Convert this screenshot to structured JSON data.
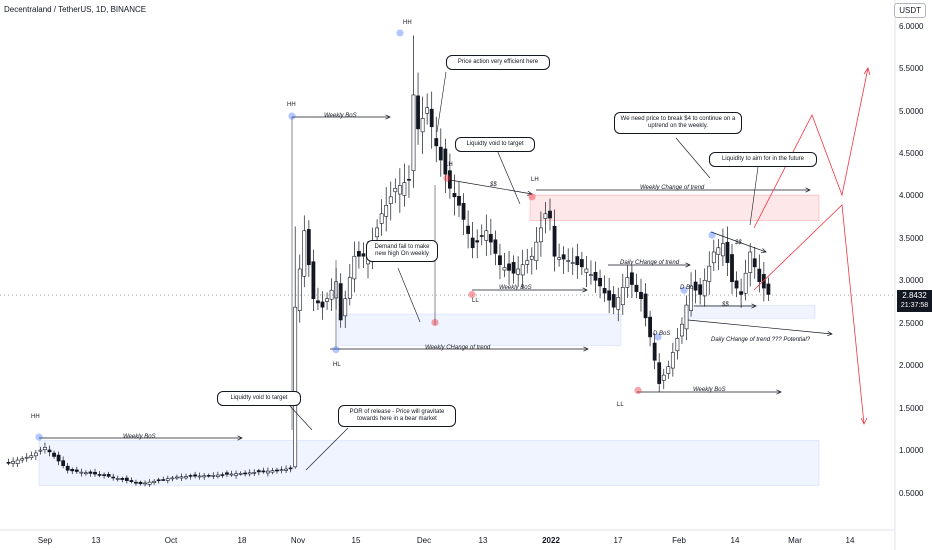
{
  "header": {
    "title": "Decentraland / TetherUS, 1D, BINANCE",
    "currency": "USDT"
  },
  "current_price": {
    "value": "2.8432",
    "countdown": "21:37:58"
  },
  "chart_data": {
    "type": "candlestick",
    "symbol": "Decentraland / TetherUS",
    "timeframe": "1D",
    "exchange": "BINANCE",
    "y_ticks": [
      "6.0000",
      "5.5000",
      "5.0000",
      "4.5000",
      "4.0000",
      "3.5000",
      "3.0000",
      "2.5000",
      "2.0000",
      "1.5000",
      "1.0000",
      "0.5000"
    ],
    "ylim": [
      0.1,
      6.25
    ],
    "x_ticks": [
      {
        "label": "Sep",
        "bold": false
      },
      {
        "label": "13",
        "bold": false
      },
      {
        "label": "Oct",
        "bold": false
      },
      {
        "label": "18",
        "bold": false
      },
      {
        "label": "Nov",
        "bold": false
      },
      {
        "label": "15",
        "bold": false
      },
      {
        "label": "Dec",
        "bold": false
      },
      {
        "label": "13",
        "bold": false
      },
      {
        "label": "2022",
        "bold": true
      },
      {
        "label": "17",
        "bold": false
      },
      {
        "label": "Feb",
        "bold": false
      },
      {
        "label": "14",
        "bold": false
      },
      {
        "label": "Mar",
        "bold": false
      },
      {
        "label": "14",
        "bold": false
      }
    ],
    "close_anchors": [
      [
        0,
        0.85
      ],
      [
        6,
        0.95
      ],
      [
        9,
        1.05
      ],
      [
        14,
        0.78
      ],
      [
        22,
        0.72
      ],
      [
        30,
        0.62
      ],
      [
        38,
        0.7
      ],
      [
        46,
        0.72
      ],
      [
        54,
        0.75
      ],
      [
        60,
        0.78
      ],
      [
        63,
        0.8
      ],
      [
        64,
        2.7
      ],
      [
        66,
        3.6
      ],
      [
        68,
        2.8
      ],
      [
        70,
        2.7
      ],
      [
        73,
        3.0
      ],
      [
        74,
        2.55
      ],
      [
        77,
        3.3
      ],
      [
        80,
        3.3
      ],
      [
        83,
        3.8
      ],
      [
        86,
        4.1
      ],
      [
        89,
        4.2
      ],
      [
        90,
        5.2
      ],
      [
        91,
        4.8
      ],
      [
        93,
        5.05
      ],
      [
        95,
        4.6
      ],
      [
        98,
        4.1
      ],
      [
        100,
        3.9
      ],
      [
        103,
        3.4
      ],
      [
        106,
        3.6
      ],
      [
        109,
        3.2
      ],
      [
        112,
        3.1
      ],
      [
        116,
        3.3
      ],
      [
        119,
        3.8
      ],
      [
        120,
        3.75
      ],
      [
        121,
        3.3
      ],
      [
        124,
        3.25
      ],
      [
        128,
        3.15
      ],
      [
        131,
        2.95
      ],
      [
        134,
        2.7
      ],
      [
        137,
        3.05
      ],
      [
        140,
        2.8
      ],
      [
        142,
        2.35
      ],
      [
        144,
        1.8
      ],
      [
        146,
        2.0
      ],
      [
        149,
        2.5
      ],
      [
        151,
        2.95
      ],
      [
        153,
        2.85
      ],
      [
        156,
        3.35
      ],
      [
        158,
        3.45
      ],
      [
        160,
        3.0
      ],
      [
        162,
        2.85
      ],
      [
        164,
        3.35
      ],
      [
        166,
        3.0
      ],
      [
        168,
        2.85
      ]
    ],
    "hl_anchors": [
      [
        64,
        3.65
      ],
      [
        90,
        5.9
      ],
      [
        144,
        1.7
      ]
    ],
    "zones": [
      {
        "from": 2.25,
        "to": 2.62,
        "color": "blue"
      },
      {
        "from": 3.72,
        "to": 4.02,
        "color": "red"
      },
      {
        "from": 2.57,
        "to": 2.72,
        "color": "blue"
      },
      {
        "from": 0.6,
        "to": 1.13,
        "color": "blue"
      }
    ],
    "pivots": [
      {
        "label": "HH",
        "price": 5.93,
        "color": "blue"
      },
      {
        "label": "HH",
        "price": 4.95,
        "color": "blue"
      },
      {
        "label": "HH",
        "price": 1.17,
        "color": "blue"
      },
      {
        "label": "LH",
        "price": 4.22,
        "color": "red"
      },
      {
        "label": "LH",
        "price": 4.0,
        "color": "red"
      },
      {
        "label": "LL",
        "price": 2.85,
        "color": "red"
      },
      {
        "label": "LL",
        "price": 1.72,
        "color": "red"
      },
      {
        "label": "HL",
        "price": 2.2,
        "color": "blue"
      },
      {
        "label": "",
        "price": 2.52,
        "color": "red"
      },
      {
        "label": "",
        "price": 3.55,
        "color": "blue"
      },
      {
        "label": "",
        "price": 2.9,
        "color": "blue"
      },
      {
        "label": "",
        "price": 2.35,
        "color": "blue"
      }
    ]
  },
  "annotations": {
    "notes": [
      "Price action very efficient here",
      "Liquidty void to target",
      "Demand fail to make new high On weekly",
      "We need price to break $4 to continue on a uptrend on the weekly.",
      "Liquidity to aim for in the future",
      "Liquidty void to target",
      "POR of release - Price will gravitate towards here in a bear market"
    ],
    "labels": {
      "weekly_bos_1": "Weekly BoS",
      "weekly_bos_2": "Weekly BoS",
      "weekly_bos_3": "Weekly BoS",
      "weekly_bos_4": "Weekly BoS",
      "weekly_choch_1": "Weekly Change of trend",
      "weekly_choch_2": "Weekly CHange of trend",
      "daily_choch_1": "Daily CHange of trend",
      "daily_choch_2": "Daily CHange of trend ??? Potential?",
      "dollars_1": "$$",
      "dollars_2": "$$",
      "dollars_3": "$$",
      "d_bos_1": "D BoS",
      "d_bos_2": "D BoS"
    }
  }
}
